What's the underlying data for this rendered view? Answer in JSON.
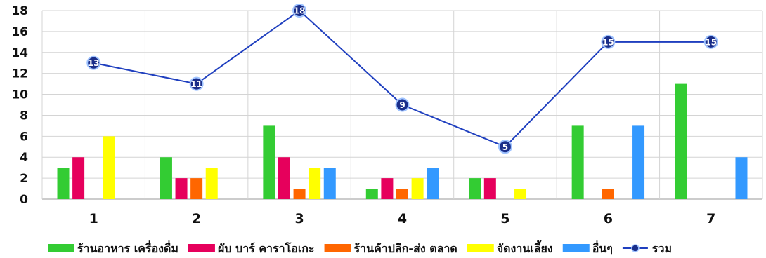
{
  "chart_data": {
    "type": "bar",
    "categories": [
      "1",
      "2",
      "3",
      "4",
      "5",
      "6",
      "7"
    ],
    "ylim": [
      0,
      18
    ],
    "yticks": [
      0,
      2,
      4,
      6,
      8,
      10,
      12,
      14,
      16,
      18
    ],
    "grid": true,
    "legend_position": "bottom",
    "series": [
      {
        "name": "ร้านอาหาร เครื่องดื่ม",
        "kind": "bar",
        "color": "#33cc33",
        "values": [
          3,
          4,
          7,
          1,
          2,
          7,
          11
        ]
      },
      {
        "name": "ผับ บาร์ คาราโอเกะ",
        "kind": "bar",
        "color": "#e6005c",
        "values": [
          4,
          2,
          4,
          2,
          2,
          0,
          0
        ]
      },
      {
        "name": "ร้านค้าปลีก-ส่ง ตลาด",
        "kind": "bar",
        "color": "#ff6600",
        "values": [
          0,
          2,
          1,
          1,
          0,
          1,
          0
        ]
      },
      {
        "name": "จัดงานเลี้ยง",
        "kind": "bar",
        "color": "#ffff00",
        "values": [
          6,
          3,
          3,
          2,
          1,
          0,
          0
        ]
      },
      {
        "name": "อื่นๆ",
        "kind": "bar",
        "color": "#3399ff",
        "values": [
          0,
          0,
          3,
          3,
          0,
          7,
          4
        ]
      },
      {
        "name": "รวม",
        "kind": "line",
        "color": "#1f3fbf",
        "values": [
          13,
          11,
          18,
          9,
          5,
          15,
          15
        ]
      }
    ]
  }
}
